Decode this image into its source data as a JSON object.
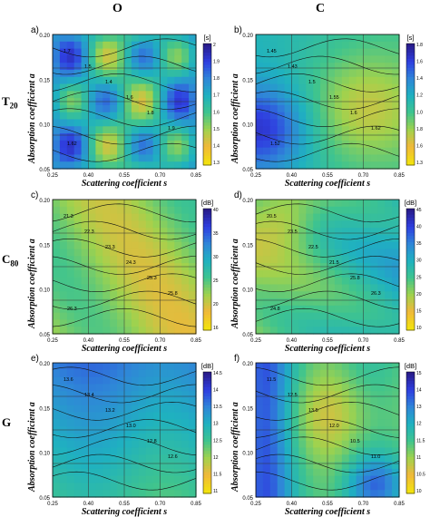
{
  "columns": [
    "O",
    "C"
  ],
  "rows": [
    "T20",
    "C80",
    "G"
  ],
  "row_labels": [
    {
      "main": "T",
      "sub": "20"
    },
    {
      "main": "C",
      "sub": "80"
    },
    {
      "main": "G",
      "sub": ""
    }
  ],
  "axis": {
    "xlabel": "Scattering coefficient s",
    "ylabel": "Absorption coefficient a",
    "xticks": [
      "0.25",
      "0.40",
      "0.55",
      "0.70",
      "0.85"
    ],
    "yticks": [
      "0.20",
      "0.15",
      "0.10",
      "0.05"
    ],
    "colors": [
      "#f5e625",
      "#e8b93a",
      "#a4d64b",
      "#45c28b",
      "#21a9b9",
      "#2c83d4",
      "#303ee0",
      "#2c1f8f"
    ]
  },
  "chart_data": [
    {
      "type": "heatmap",
      "panel": "a)",
      "row": "T20",
      "column": "O",
      "unit": "[s]",
      "colorbar": [
        "2",
        "1.9",
        "1.8",
        "1.7",
        "1.6",
        "1.5",
        "1.4",
        "1.3"
      ],
      "xlim": [
        0.25,
        0.85
      ],
      "ylim": [
        0.05,
        0.2
      ],
      "contour_labels": [
        "1.7",
        "1.5",
        "1.4",
        "1.6",
        "1.8",
        "1.9",
        "1.62"
      ]
    },
    {
      "type": "heatmap",
      "panel": "b)",
      "row": "T20",
      "column": "C",
      "unit": "[s]",
      "colorbar": [
        "1.8",
        "1.6",
        "1.4",
        "1.2",
        "1.0",
        "1.8",
        "1.6",
        "1.3"
      ],
      "xlim": [
        0.25,
        0.85
      ],
      "ylim": [
        0.05,
        0.2
      ],
      "contour_labels": [
        "1.45",
        "1.43",
        "1.5",
        "1.55",
        "1.6",
        "1.62",
        "1.52"
      ]
    },
    {
      "type": "heatmap",
      "panel": "c)",
      "row": "C80",
      "column": "O",
      "unit": "[dB]",
      "colorbar": [
        "40",
        "35",
        "30",
        "25",
        "20",
        "16"
      ],
      "xlim": [
        0.25,
        0.85
      ],
      "ylim": [
        0.05,
        0.2
      ],
      "contour_labels": [
        "21.3",
        "22.3",
        "23.3",
        "24.3",
        "25.3",
        "25.8",
        "26.3"
      ]
    },
    {
      "type": "heatmap",
      "panel": "d)",
      "row": "C80",
      "column": "C",
      "unit": "[dB]",
      "colorbar": [
        "45",
        "40",
        "35",
        "30",
        "25",
        "20",
        "15",
        "10"
      ],
      "xlim": [
        0.25,
        0.85
      ],
      "ylim": [
        0.05,
        0.2
      ],
      "contour_labels": [
        "20.5",
        "23.5",
        "22.5",
        "21.5",
        "25.8",
        "26.3",
        "24.8"
      ]
    },
    {
      "type": "heatmap",
      "panel": "e)",
      "row": "G",
      "column": "O",
      "unit": "[dB]",
      "colorbar": [
        "14.5",
        "14",
        "13.5",
        "13",
        "12.5",
        "12",
        "11.5",
        "11"
      ],
      "xlim": [
        0.25,
        0.85
      ],
      "ylim": [
        0.05,
        0.2
      ],
      "contour_labels": [
        "13.6",
        "13.4",
        "13.2",
        "13.0",
        "12.8",
        "12.6"
      ]
    },
    {
      "type": "heatmap",
      "panel": "f)",
      "row": "G",
      "column": "C",
      "unit": "[dB]",
      "colorbar": [
        "15",
        "14",
        "13",
        "12",
        "11.5",
        "11",
        "10.5",
        "10"
      ],
      "xlim": [
        0.25,
        0.85
      ],
      "ylim": [
        0.05,
        0.2
      ],
      "contour_labels": [
        "11.5",
        "12.5",
        "13.5",
        "12.0",
        "10.5",
        "11.0"
      ]
    }
  ]
}
